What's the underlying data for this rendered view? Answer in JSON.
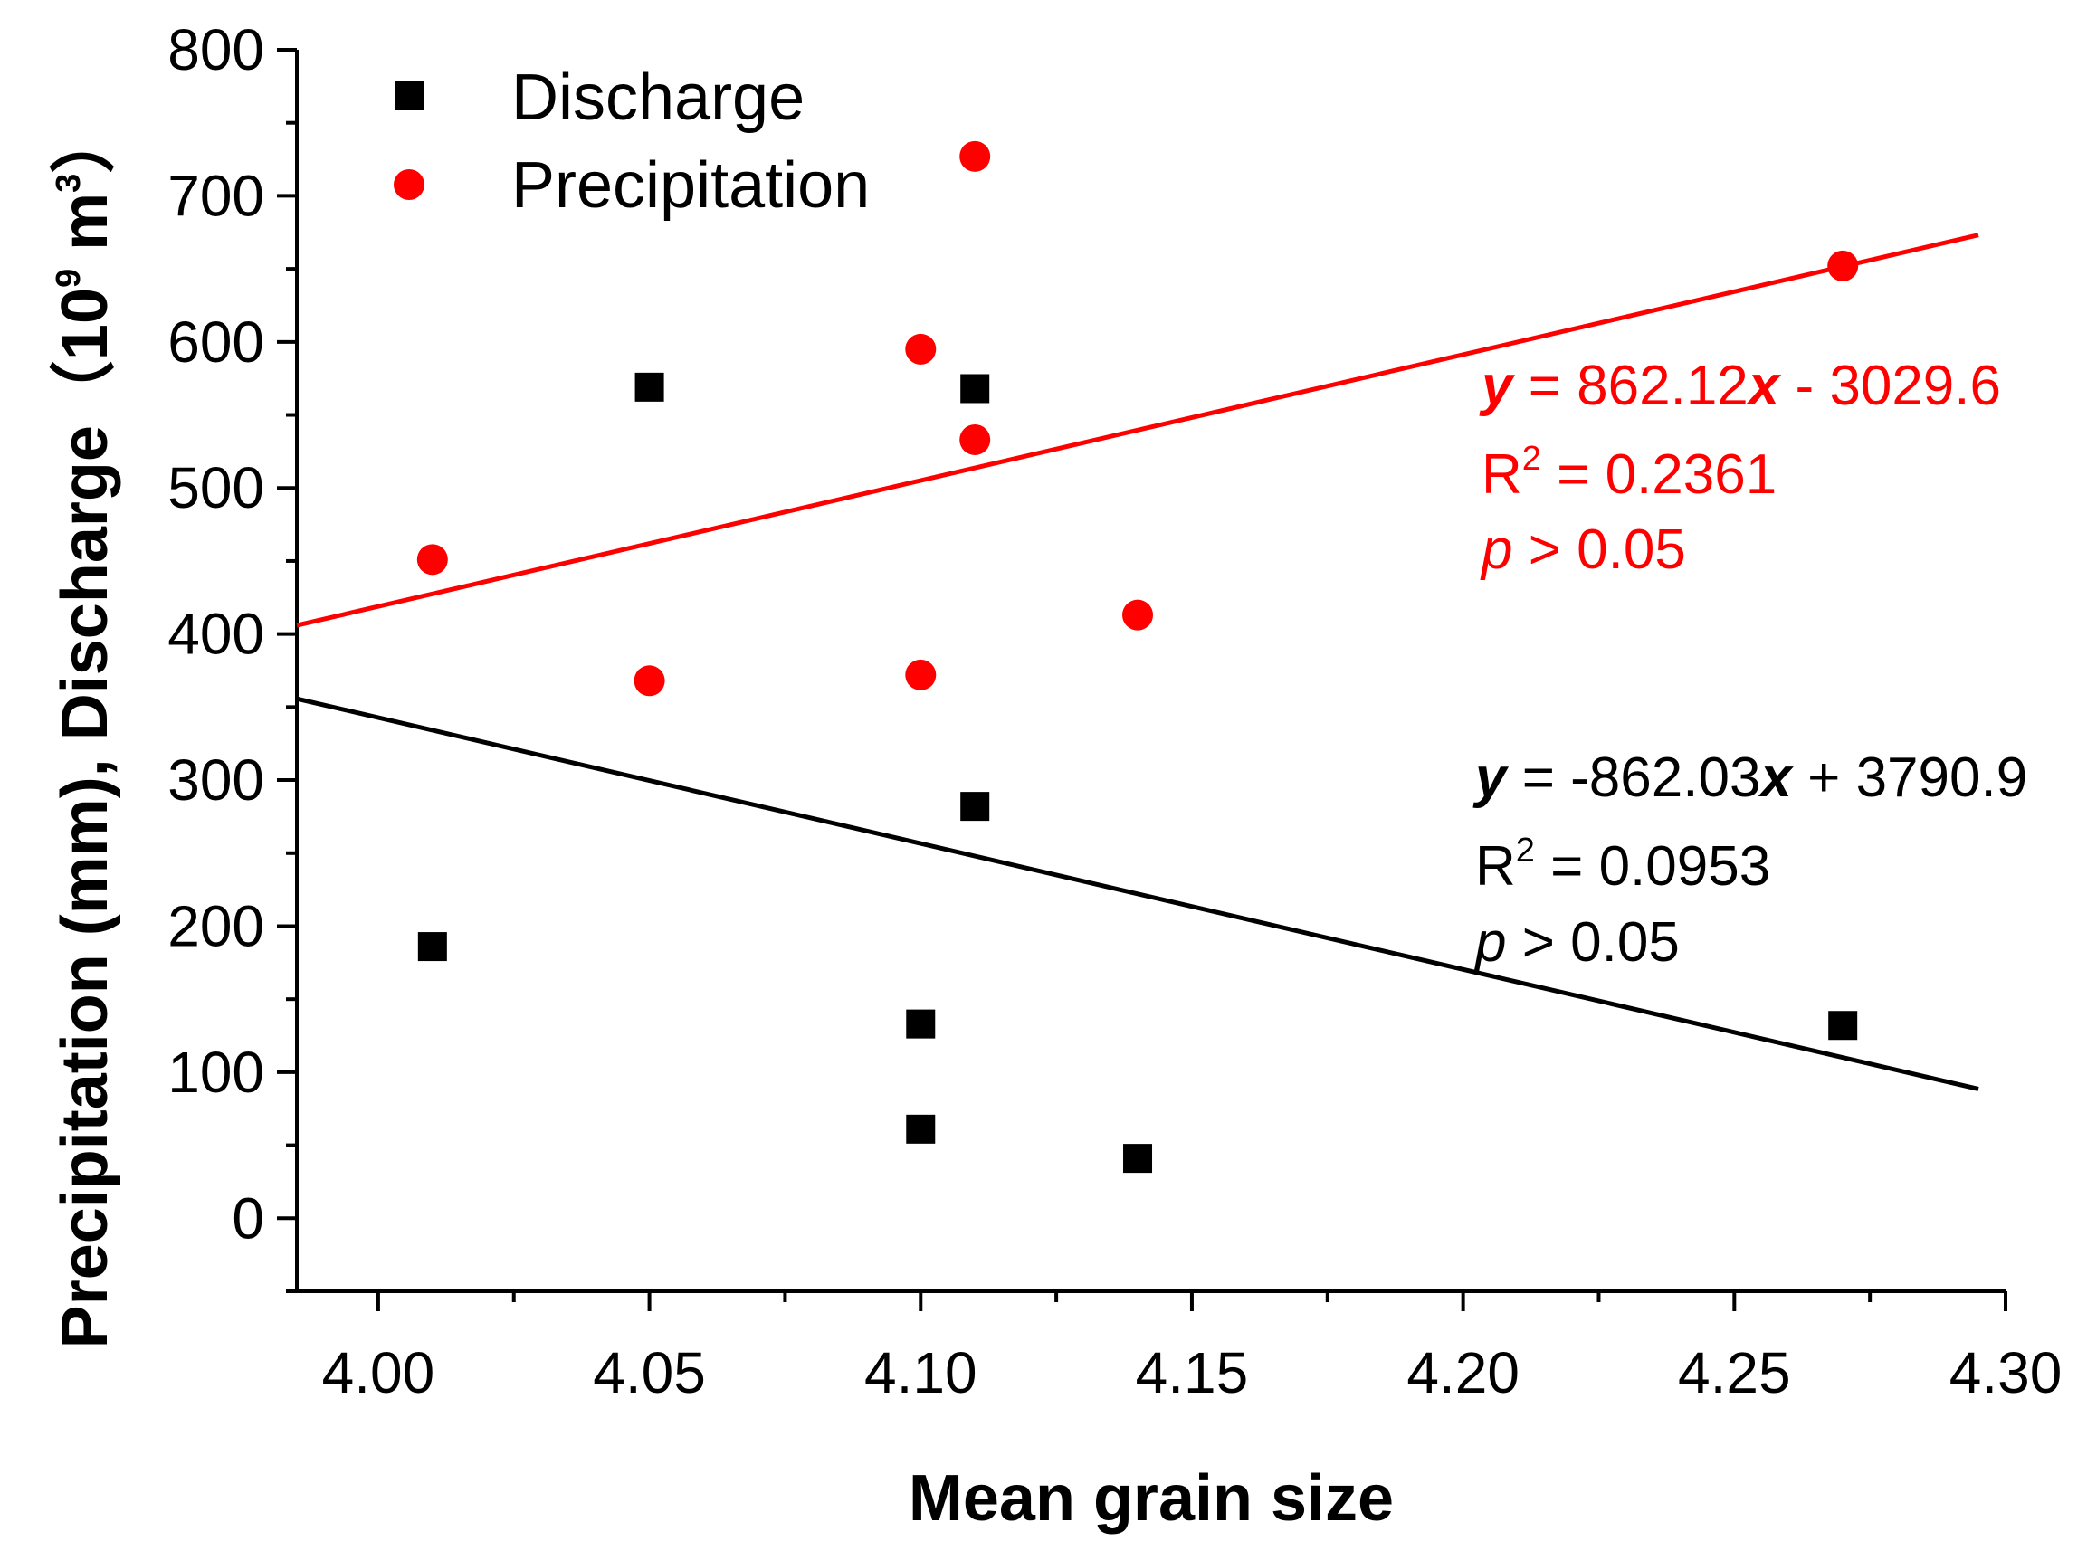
{
  "chart_data": {
    "type": "scatter",
    "title": "",
    "xlabel": "Mean grain size",
    "ylabel": {
      "prefix": "Precipitation (mm), Discharge（",
      "base": "10",
      "exponent": "9",
      "unit": " m",
      "unit_exponent": "3",
      "suffix": "）"
    },
    "xlim": [
      3.985,
      4.3
    ],
    "ylim": [
      -50,
      800
    ],
    "xticks": [
      "4.00",
      "4.05",
      "4.10",
      "4.15",
      "4.20",
      "4.25",
      "4.30"
    ],
    "yticks": [
      "0",
      "100",
      "200",
      "300",
      "400",
      "500",
      "600",
      "700",
      "800"
    ],
    "legend_position": "top-left",
    "series": [
      {
        "name": "Discharge",
        "marker": "square",
        "color": "#000000",
        "points": [
          {
            "x": 4.01,
            "y": 186
          },
          {
            "x": 4.05,
            "y": 569
          },
          {
            "x": 4.1,
            "y": 133
          },
          {
            "x": 4.1,
            "y": 61
          },
          {
            "x": 4.11,
            "y": 568
          },
          {
            "x": 4.11,
            "y": 282
          },
          {
            "x": 4.14,
            "y": 41
          },
          {
            "x": 4.27,
            "y": 132
          }
        ],
        "fit": {
          "slope": -862.03,
          "intercept": 3790.9,
          "x_range": [
            3.985,
            4.295
          ]
        },
        "equation": {
          "y": "y",
          "op1": " = -862.03",
          "x": "x",
          "op2": " + 3790.9",
          "r2_prefix": "R",
          "r2_exp": "2",
          "r2_value": " = 0.0953",
          "p_symbol": "p",
          "p_value": " > 0.05"
        }
      },
      {
        "name": "Precipitation",
        "marker": "circle",
        "color": "#ff0000",
        "points": [
          {
            "x": 4.01,
            "y": 451
          },
          {
            "x": 4.05,
            "y": 368
          },
          {
            "x": 4.1,
            "y": 595
          },
          {
            "x": 4.1,
            "y": 372
          },
          {
            "x": 4.11,
            "y": 727
          },
          {
            "x": 4.11,
            "y": 533
          },
          {
            "x": 4.14,
            "y": 413
          },
          {
            "x": 4.27,
            "y": 652
          }
        ],
        "fit": {
          "slope": 862.12,
          "intercept": -3029.6,
          "x_range": [
            3.985,
            4.295
          ]
        },
        "equation": {
          "y": "y",
          "op1": " = 862.12",
          "x": "x",
          "op2": " - 3029.6",
          "r2_prefix": "R",
          "r2_exp": "2",
          "r2_value": " = 0.2361",
          "p_symbol": "p",
          "p_value": " > 0.05"
        }
      }
    ]
  }
}
